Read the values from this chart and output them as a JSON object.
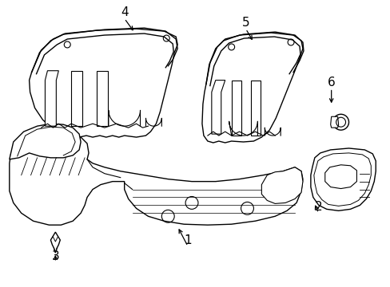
{
  "bg_color": "#ffffff",
  "line_color": "#000000",
  "line_width": 1.0,
  "figsize": [
    4.89,
    3.6
  ],
  "dpi": 100
}
